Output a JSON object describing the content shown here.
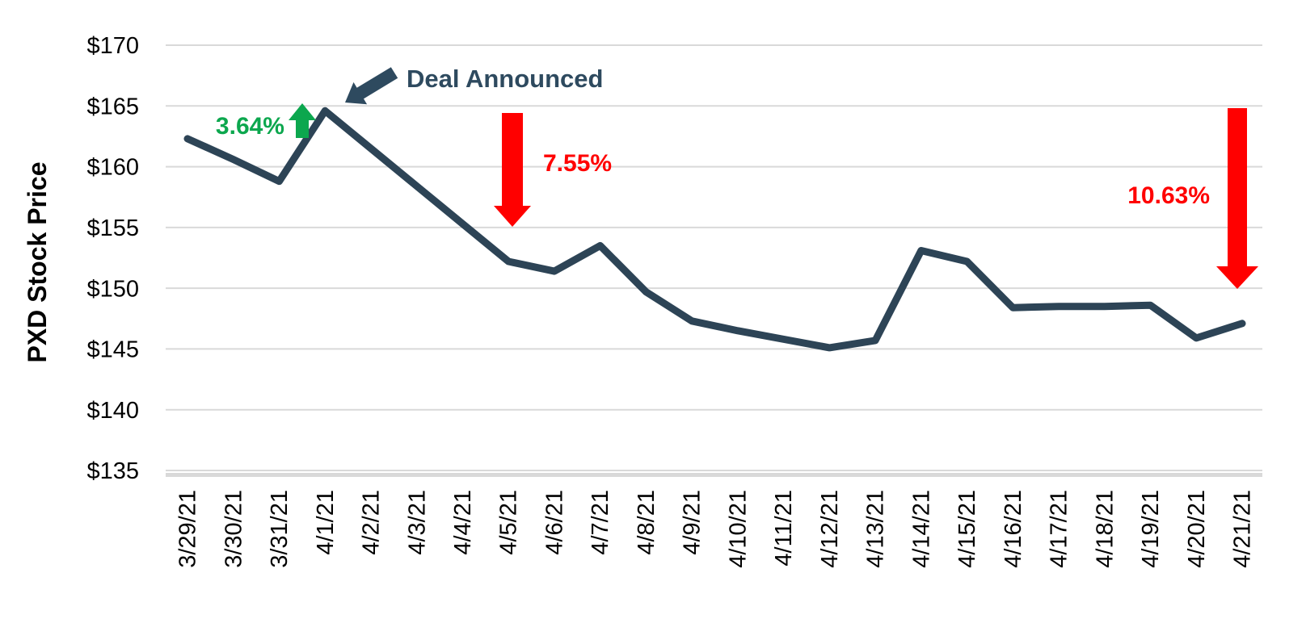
{
  "page": {
    "background": "#ffffff"
  },
  "chart_data": {
    "type": "line",
    "title": "",
    "xlabel": "",
    "ylabel": "PXD Stock Price",
    "ylim": [
      135,
      170
    ],
    "grid": "horizontal",
    "gridline_color": "#d9d9d9",
    "axis_line_color": "#d9d9d9",
    "legend": "none",
    "categories": [
      "3/29/21",
      "3/30/21",
      "3/31/21",
      "4/1/21",
      "4/2/21",
      "4/3/21",
      "4/4/21",
      "4/5/21",
      "4/6/21",
      "4/7/21",
      "4/8/21",
      "4/9/21",
      "4/10/21",
      "4/11/21",
      "4/12/21",
      "4/13/21",
      "4/14/21",
      "4/15/21",
      "4/16/21",
      "4/17/21",
      "4/18/21",
      "4/19/21",
      "4/20/21",
      "4/21/21"
    ],
    "series": [
      {
        "name": "PXD Stock Price",
        "color": "#2d4456",
        "values": [
          162.3,
          160.6,
          158.8,
          164.6,
          161.5,
          158.4,
          155.3,
          152.2,
          151.4,
          153.5,
          149.7,
          147.3,
          146.5,
          145.8,
          145.1,
          145.7,
          153.1,
          152.2,
          148.4,
          148.5,
          148.5,
          148.6,
          145.9,
          147.1
        ]
      }
    ],
    "yticks": {
      "labels": [
        "$170",
        "$165",
        "$160",
        "$155",
        "$150",
        "$145",
        "$140",
        "$135"
      ],
      "values": [
        170,
        165,
        160,
        155,
        150,
        145,
        140,
        135
      ]
    },
    "annotations": {
      "deal": {
        "label": "Deal Announced",
        "color": "#2e4a5f",
        "arrow": "block-arrow-down-left",
        "points_to_date": "4/1/21"
      },
      "gain": {
        "label": "3.64%",
        "color": "#0ca74e",
        "direction": "up",
        "between_dates": [
          "3/31/21",
          "4/1/21"
        ]
      },
      "drop1": {
        "label": "7.55%",
        "color": "#ff0000",
        "direction": "down",
        "at_date": "4/5/21"
      },
      "drop2": {
        "label": "10.63%",
        "color": "#ff0000",
        "direction": "down",
        "at_date": "4/21/21"
      }
    }
  }
}
